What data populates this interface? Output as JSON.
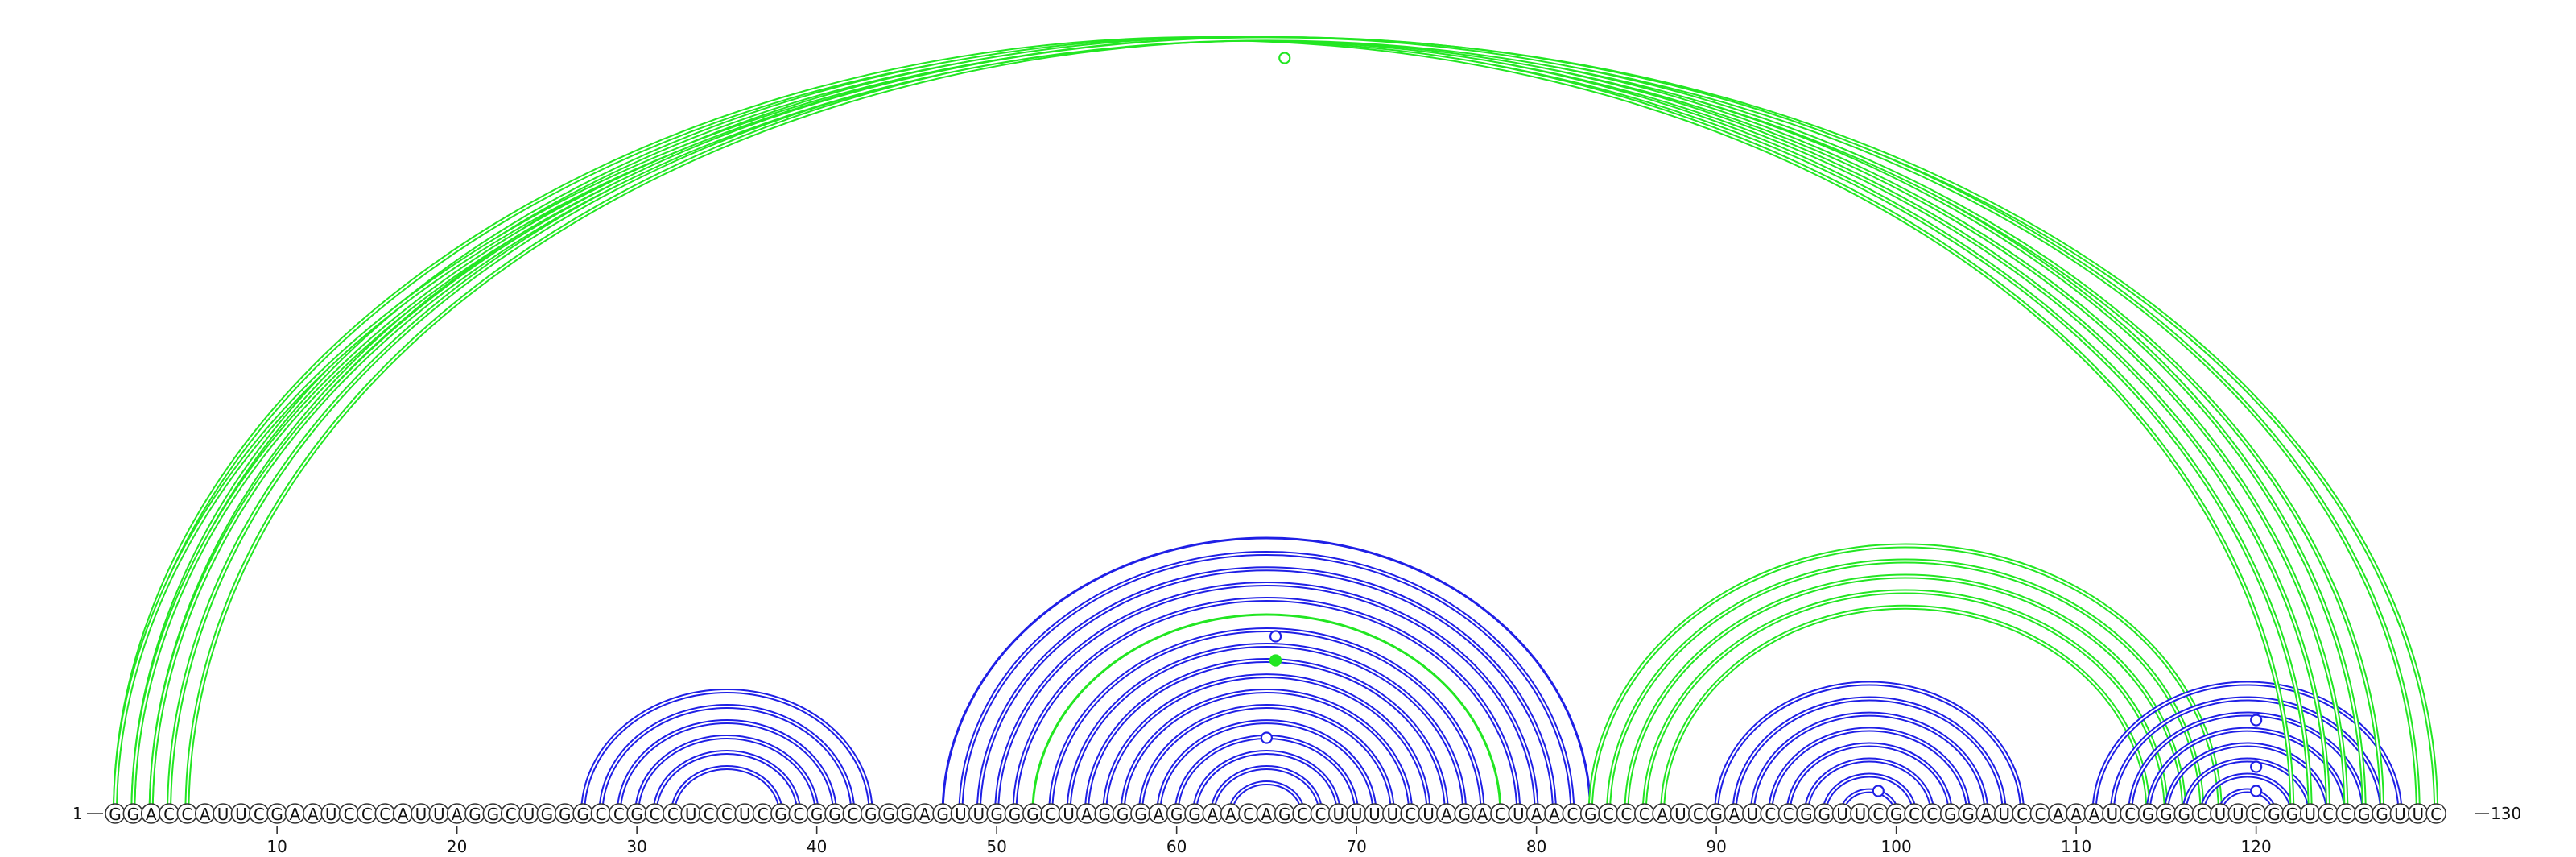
{
  "sequence": "GGACCAUUCGAAUCCCAUUAGGCUGGGCCGCCUCCUCGCGGCGGGAGUUGGGCUAGGGAGGAACAGCCUUUUCUAGACUAACGCCCAUCGAUCCGGUUCGCCGGAUCCAAAUCGGGCUUCGGUCCGGUUC",
  "start_label": "1",
  "end_label": "130",
  "ticks": [
    10,
    20,
    30,
    40,
    50,
    60,
    70,
    80,
    90,
    100,
    110,
    120
  ],
  "colors": {
    "blue": "#1f1fe6",
    "green": "#22e622",
    "text": "#111111"
  },
  "pair_groups": [
    {
      "color": "blue",
      "style": "double",
      "pairs": [
        [
          27,
          43
        ],
        [
          28,
          42
        ],
        [
          29,
          41
        ],
        [
          30,
          40
        ],
        [
          31,
          39
        ],
        [
          32,
          38
        ]
      ]
    },
    {
      "color": "blue",
      "style": "single",
      "pairs": [
        [
          47,
          83
        ]
      ]
    },
    {
      "color": "blue",
      "style": "double",
      "pairs": [
        [
          48,
          82
        ],
        [
          49,
          81
        ],
        [
          50,
          80
        ],
        [
          51,
          79
        ]
      ]
    },
    {
      "color": "green",
      "style": "single",
      "pairs": [
        [
          52,
          78
        ]
      ]
    },
    {
      "color": "blue",
      "style": "double",
      "pairs": [
        [
          53,
          77
        ],
        [
          54,
          76
        ],
        [
          55,
          75
        ],
        [
          56,
          74
        ],
        [
          57,
          73
        ],
        [
          58,
          72
        ],
        [
          59,
          71
        ],
        [
          60,
          70
        ],
        [
          61,
          69
        ],
        [
          62,
          68
        ],
        [
          63,
          67
        ]
      ]
    },
    {
      "color": "green",
      "style": "double",
      "pairs": [
        [
          83,
          118
        ],
        [
          84,
          117
        ],
        [
          85,
          116
        ],
        [
          86,
          115
        ],
        [
          87,
          114
        ]
      ]
    },
    {
      "color": "blue",
      "style": "double",
      "pairs": [
        [
          90,
          107
        ],
        [
          91,
          106
        ],
        [
          92,
          105
        ],
        [
          93,
          104
        ],
        [
          94,
          103
        ],
        [
          95,
          102
        ],
        [
          96,
          101
        ],
        [
          97,
          100
        ]
      ]
    },
    {
      "color": "blue",
      "style": "double",
      "pairs": [
        [
          111,
          128
        ],
        [
          112,
          127
        ],
        [
          113,
          126
        ],
        [
          114,
          125
        ],
        [
          115,
          124
        ],
        [
          116,
          123
        ],
        [
          117,
          122
        ],
        [
          118,
          121
        ]
      ]
    },
    {
      "color": "green",
      "style": "double",
      "pairs": [
        [
          1,
          122
        ],
        [
          2,
          123
        ],
        [
          3,
          124
        ],
        [
          4,
          125
        ],
        [
          5,
          126
        ]
      ]
    },
    {
      "color": "green",
      "style": "double",
      "pairs": [
        [
          1,
          130
        ],
        [
          2,
          129
        ],
        [
          3,
          127
        ]
      ]
    }
  ],
  "markers": [
    {
      "at": 65.5,
      "color": "blue",
      "ring": "outer",
      "filled": false
    },
    {
      "at": 65.5,
      "color": "green",
      "ring": "third",
      "filled": true
    },
    {
      "at": 65,
      "color": "blue",
      "ring": "inner",
      "filled": false
    },
    {
      "at": 120,
      "color": "blue",
      "ring": "outer",
      "filled": false
    },
    {
      "at": 120,
      "color": "blue",
      "ring": "third",
      "filled": false
    },
    {
      "at": 120,
      "color": "blue",
      "ring": "inner",
      "filled": false
    },
    {
      "at": 99,
      "color": "blue",
      "ring": "inner",
      "filled": false
    },
    {
      "at": 66,
      "color": "green",
      "ring": "outer",
      "filled": false
    }
  ]
}
